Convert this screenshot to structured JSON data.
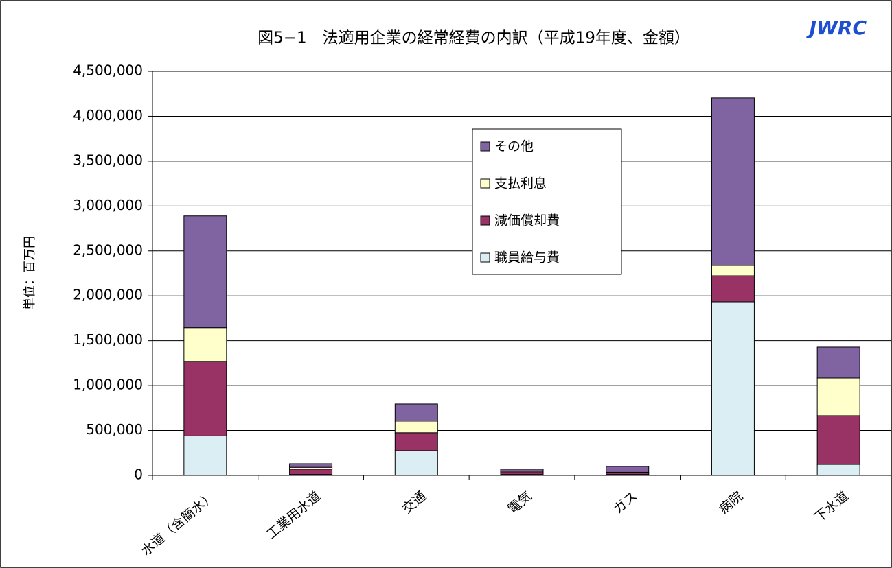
{
  "chart_data": {
    "type": "stacked-bar",
    "title": "図5−1　法適用企業の経常経費の内訳（平成19年度、金額）",
    "logo": "JWRC",
    "y_label": "単位：百万円",
    "categories": [
      "水道（含簡水）",
      "工業用水道",
      "交通",
      "電気",
      "ガス",
      "病院",
      "下水道"
    ],
    "series": [
      {
        "name": "職員給与費",
        "color": "#dbeef3",
        "values": [
          440000,
          10000,
          275000,
          10000,
          10000,
          1933000,
          122000
        ]
      },
      {
        "name": "減価償却費",
        "color": "#993366",
        "values": [
          830000,
          60000,
          200000,
          30000,
          20000,
          290000,
          543000
        ]
      },
      {
        "name": "支払利息",
        "color": "#ffffcc",
        "values": [
          375000,
          20000,
          130000,
          10000,
          5000,
          115000,
          420000
        ]
      },
      {
        "name": "その他",
        "color": "#8064a2",
        "values": [
          1245000,
          40000,
          190000,
          20000,
          65000,
          1865000,
          344000
        ]
      }
    ],
    "ylim": [
      0,
      4500000
    ],
    "yticks": [
      0,
      {
        "value": 500000,
        "label": "500,000"
      },
      {
        "value": 1000000,
        "label": "1,000,000"
      },
      {
        "value": 1500000,
        "label": "1,500,000"
      },
      {
        "value": 2000000,
        "label": "2,000,000"
      },
      {
        "value": 2500000,
        "label": "2,500,000"
      },
      {
        "value": 3000000,
        "label": "3,000,000"
      },
      {
        "value": 3500000,
        "label": "3,500,000"
      },
      {
        "value": 4000000,
        "label": "4,000,000"
      },
      {
        "value": 4500000,
        "label": "4,500,000"
      }
    ],
    "grid": true
  }
}
